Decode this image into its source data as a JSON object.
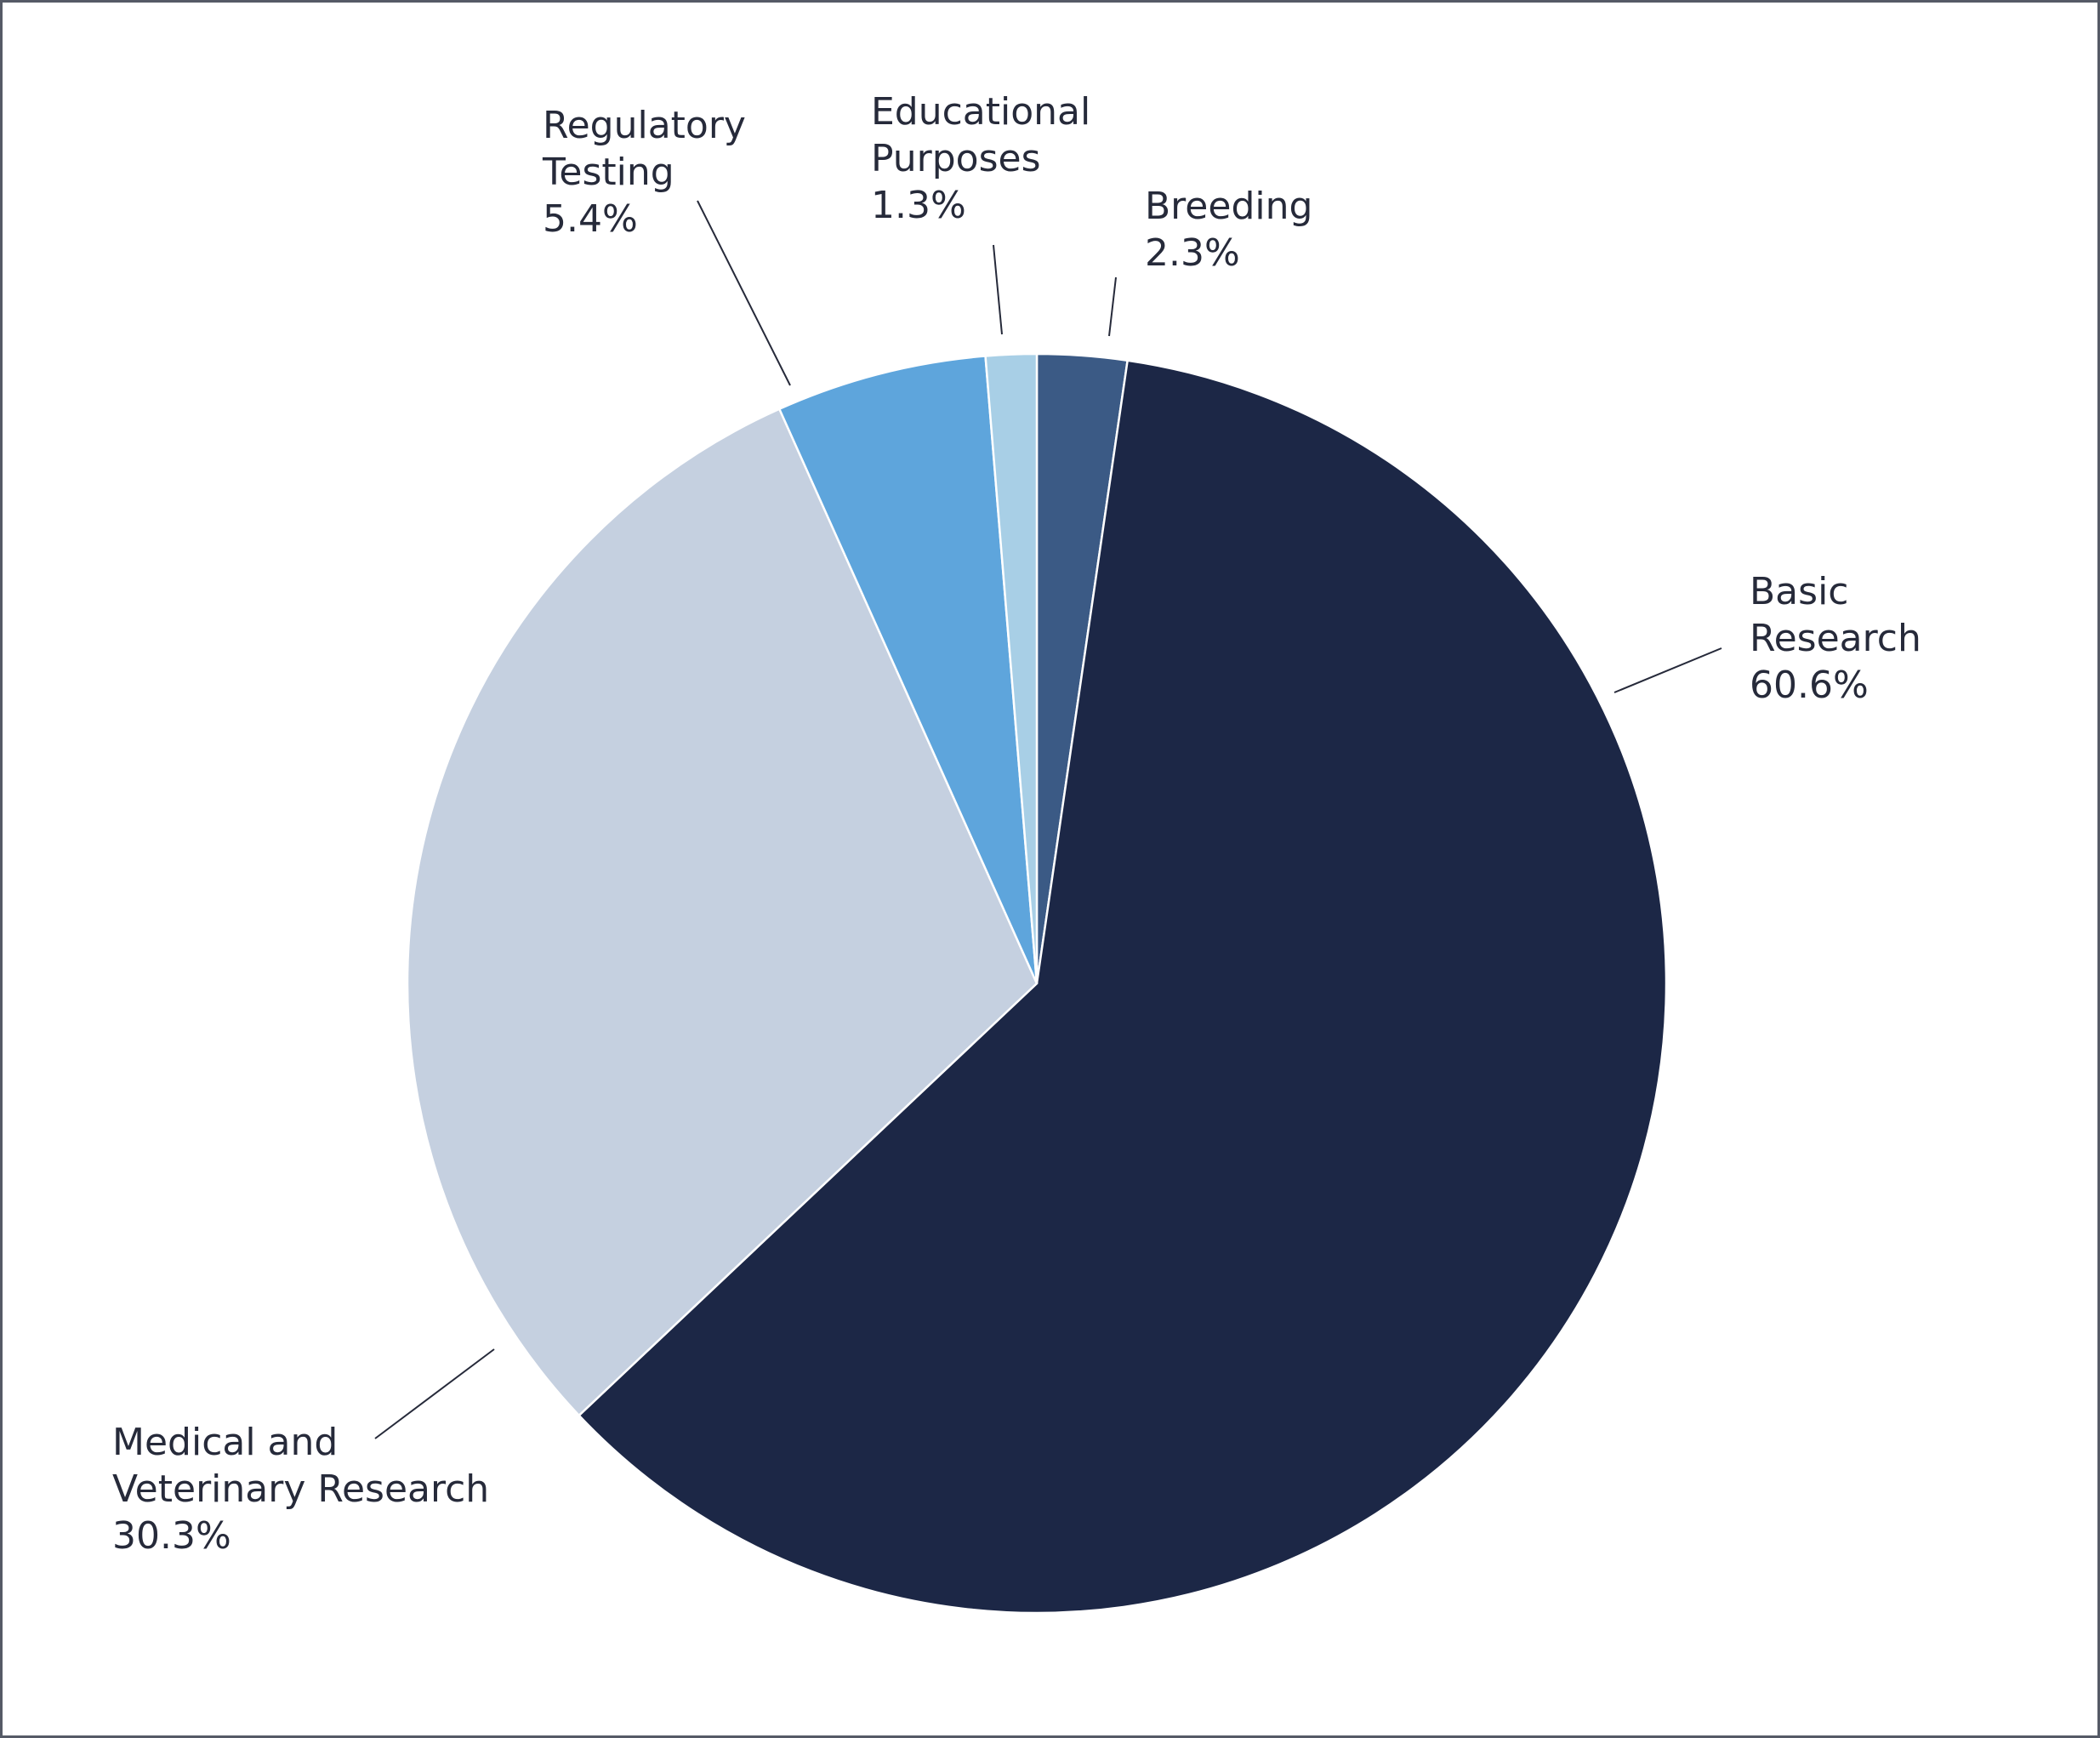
{
  "chart_data": {
    "type": "pie",
    "start_angle": "12 o'clock",
    "direction": "clockwise",
    "slices": [
      {
        "label_lines": [
          "Breeding"
        ],
        "value": 2.3,
        "value_label": "2.3%",
        "color": "#3b5a85"
      },
      {
        "label_lines": [
          "Basic",
          "Research"
        ],
        "value": 60.6,
        "value_label": "60.6%",
        "color": "#1c2746"
      },
      {
        "label_lines": [
          "Medical and",
          "Veterinary Research"
        ],
        "value": 30.3,
        "value_label": "30.3%",
        "color": "#c5d0e0"
      },
      {
        "label_lines": [
          "Regulatory",
          "Testing"
        ],
        "value": 5.4,
        "value_label": "5.4%",
        "color": "#5ea5dc"
      },
      {
        "label_lines": [
          "Educational",
          "Purposes"
        ],
        "value": 1.3,
        "value_label": "1.3%",
        "color": "#a8cfe6"
      }
    ],
    "legend": "none",
    "label_style": "outside with leader lines"
  }
}
